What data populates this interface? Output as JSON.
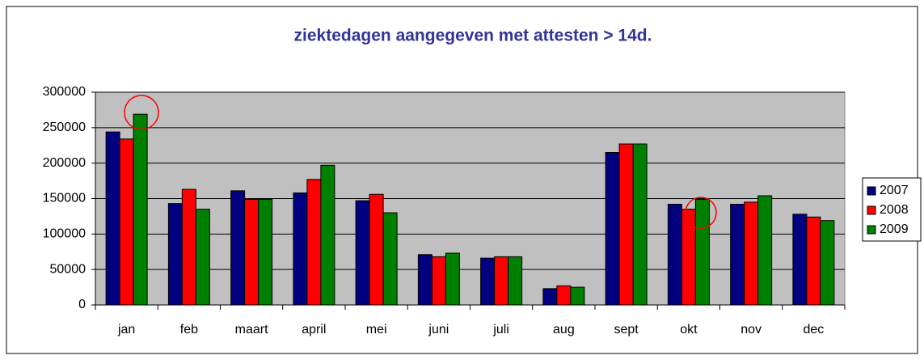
{
  "chart_data": {
    "type": "bar",
    "title": "ziektedagen aangegeven met attesten > 14d.",
    "categories": [
      "jan",
      "feb",
      "maart",
      "april",
      "mei",
      "juni",
      "juli",
      "aug",
      "sept",
      "okt",
      "nov",
      "dec"
    ],
    "series": [
      {
        "name": "2007",
        "color": "#000080",
        "values": [
          244000,
          143000,
          161000,
          158000,
          147000,
          71000,
          66000,
          23000,
          215000,
          142000,
          142000,
          128000
        ]
      },
      {
        "name": "2008",
        "color": "#ff0000",
        "values": [
          234000,
          163000,
          149000,
          177000,
          156000,
          68000,
          68000,
          27000,
          227000,
          135000,
          145000,
          124000
        ]
      },
      {
        "name": "2009",
        "color": "#008000",
        "values": [
          269000,
          135000,
          149000,
          197000,
          130000,
          73000,
          68000,
          25000,
          227000,
          149000,
          154000,
          119000
        ]
      }
    ],
    "ylim": [
      0,
      300000
    ],
    "yticks": [
      0,
      50000,
      100000,
      150000,
      200000,
      250000,
      300000
    ],
    "grid": true,
    "legend": "right"
  }
}
